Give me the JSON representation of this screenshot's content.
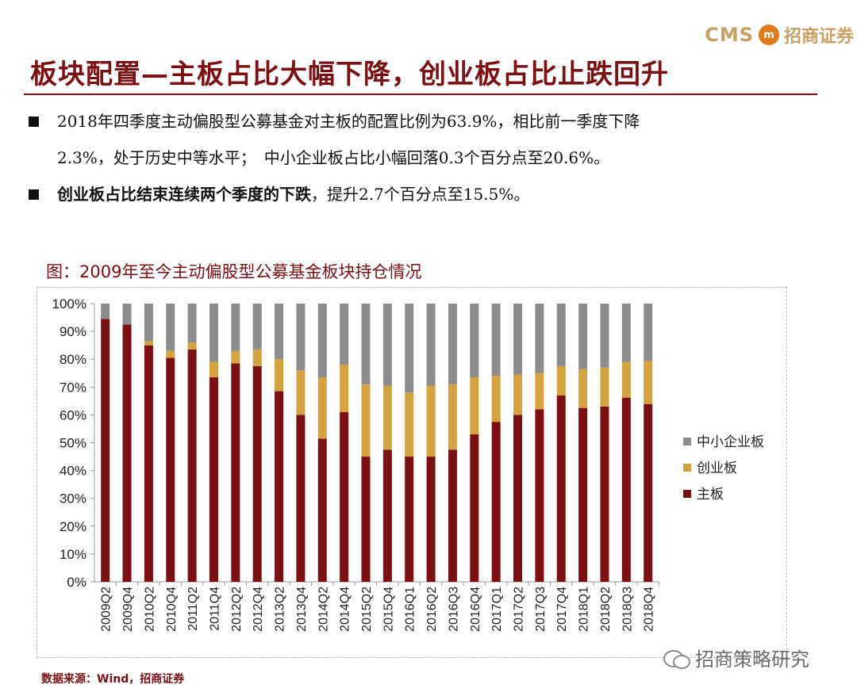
{
  "header": {
    "logo_text": "CMS",
    "logo_badge": "m",
    "logo_cn": "招商证券",
    "title": "板块配置—主板占比大幅下降，创业板占比止跌回升"
  },
  "bullets": [
    {
      "line1": "2018年四季度主动偏股型公募基金对主板的配置比例为63.9%，相比前一季度下降",
      "line2": "2.3%，处于历史中等水平；　中小企业板占比小幅回落0.3个百分点至20.6%。"
    },
    {
      "bold": "创业板占比结束连续两个季度的下跌",
      "rest": "，提升2.7个百分点至15.5%。"
    }
  ],
  "chart_title": "图：2009年至今主动偏股型公募基金板块持仓情况",
  "chart_data": {
    "type": "bar",
    "stacked": true,
    "categories": [
      "2009Q2",
      "2009Q4",
      "2010Q2",
      "2010Q4",
      "2011Q2",
      "2011Q4",
      "2012Q2",
      "2012Q4",
      "2013Q2",
      "2013Q4",
      "2014Q2",
      "2014Q4",
      "2015Q2",
      "2015Q4",
      "2016Q1",
      "2016Q2",
      "2016Q3",
      "2016Q4",
      "2017Q1",
      "2017Q2",
      "2017Q3",
      "2017Q4",
      "2018Q1",
      "2018Q2",
      "2018Q3",
      "2018Q4"
    ],
    "series": [
      {
        "name": "主板",
        "color": "#7b0f12",
        "values": [
          94.5,
          92.5,
          85,
          80.5,
          83.5,
          73.5,
          78.5,
          77.5,
          68.5,
          60,
          51.5,
          61,
          45,
          47.5,
          45,
          45,
          47.5,
          53,
          57.5,
          60,
          62,
          67,
          62.5,
          63,
          66.2,
          63.9
        ]
      },
      {
        "name": "创业板",
        "color": "#d4a33f",
        "values": [
          0,
          0,
          1.5,
          2.5,
          2.5,
          5.5,
          4.5,
          6,
          11.5,
          16,
          22,
          17,
          26,
          23,
          23,
          25.5,
          23.5,
          20.5,
          16.5,
          14.5,
          13,
          10.5,
          14,
          14,
          12.8,
          15.5
        ]
      },
      {
        "name": "中小企业板",
        "color": "#8c8c8c",
        "values": [
          5.5,
          7.5,
          13.5,
          17,
          14,
          21,
          17,
          16.5,
          20,
          24,
          26.5,
          22,
          29,
          29.5,
          32,
          29.5,
          29,
          26.5,
          26,
          25.5,
          25,
          22.5,
          23.5,
          23,
          21,
          20.6
        ]
      }
    ],
    "legend_order": [
      "中小企业板",
      "创业板",
      "主板"
    ],
    "ylim": [
      0,
      100
    ],
    "yticks": [
      "0%",
      "10%",
      "20%",
      "30%",
      "40%",
      "50%",
      "60%",
      "70%",
      "80%",
      "90%",
      "100%"
    ],
    "grid": false,
    "legend_position": "right"
  },
  "source": "数据来源：Wind，招商证券",
  "watermark": "招商策略研究"
}
